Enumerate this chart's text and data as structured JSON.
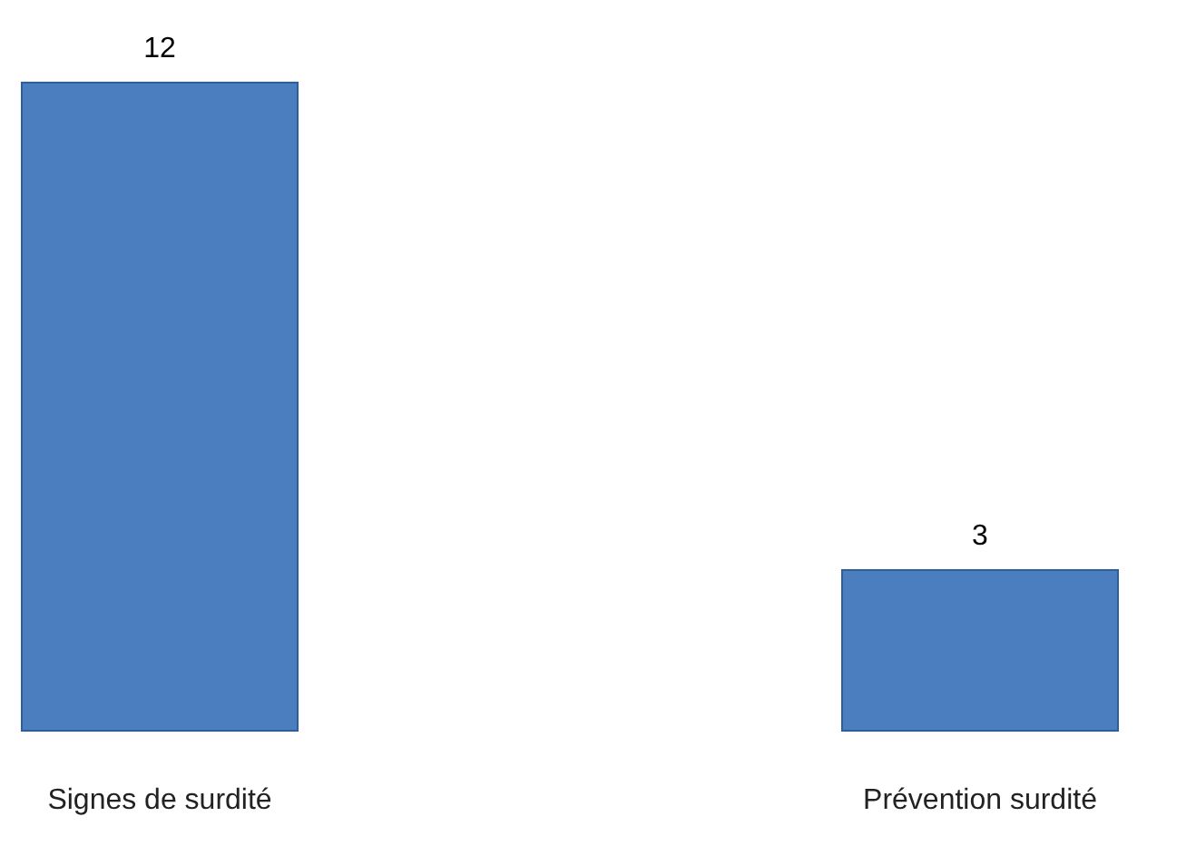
{
  "chart_data": {
    "type": "bar",
    "categories": [
      "Signes de surdité",
      "Prévention surdité"
    ],
    "values": [
      12,
      3
    ],
    "color": "#4a7ebf",
    "data_labels": true
  }
}
